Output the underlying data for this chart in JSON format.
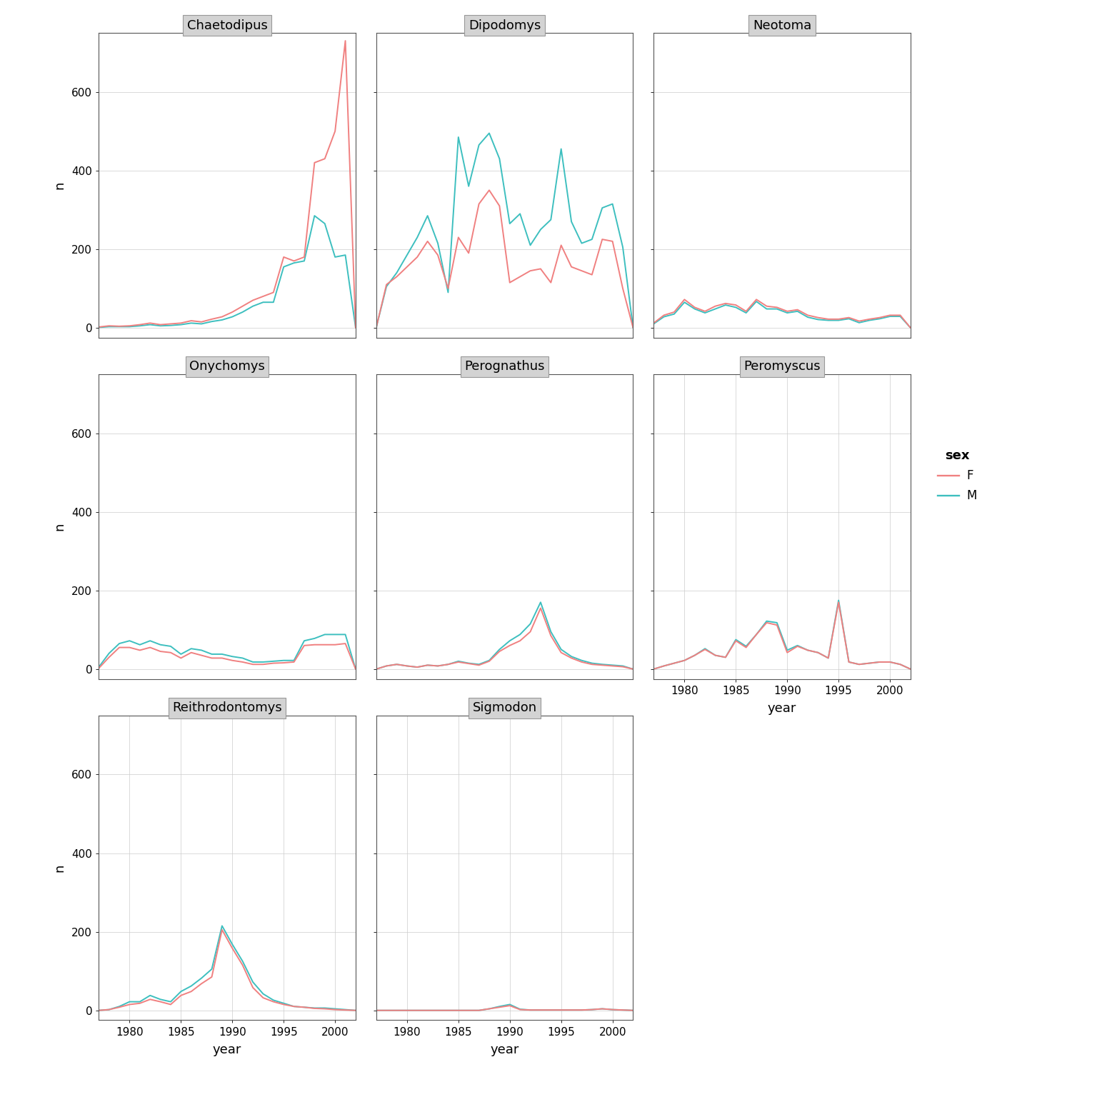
{
  "years": [
    1977,
    1978,
    1979,
    1980,
    1981,
    1982,
    1983,
    1984,
    1985,
    1986,
    1987,
    1988,
    1989,
    1990,
    1991,
    1992,
    1993,
    1994,
    1995,
    1996,
    1997,
    1998,
    1999,
    2000,
    2001,
    2002
  ],
  "genera": [
    "Chaetodipus",
    "Dipodomys",
    "Neotoma",
    "Onychomys",
    "Perognathus",
    "Peromyscus",
    "Reithrodontomys",
    "Sigmodon"
  ],
  "color_F": "#F08080",
  "color_M": "#3DBFBF",
  "line_width": 1.4,
  "background_color": "#FFFFFF",
  "panel_bg": "#FFFFFF",
  "grid_color": "#CCCCCC",
  "strip_bg": "#D3D3D3",
  "strip_border": "#999999",
  "ylabel": "n",
  "xlabel": "year",
  "legend_title": "sex",
  "data": {
    "Chaetodipus": {
      "F": [
        2,
        5,
        4,
        5,
        8,
        12,
        8,
        10,
        12,
        18,
        15,
        22,
        28,
        40,
        55,
        70,
        80,
        90,
        180,
        170,
        180,
        420,
        430,
        500,
        730,
        0
      ],
      "M": [
        1,
        3,
        3,
        3,
        5,
        8,
        5,
        6,
        8,
        12,
        10,
        16,
        20,
        28,
        40,
        55,
        65,
        65,
        155,
        165,
        170,
        285,
        265,
        180,
        185,
        0
      ]
    },
    "Dipodomys": {
      "F": [
        0,
        110,
        130,
        155,
        180,
        220,
        185,
        100,
        230,
        190,
        315,
        350,
        310,
        115,
        130,
        145,
        150,
        115,
        210,
        155,
        145,
        135,
        225,
        220,
        100,
        0
      ],
      "M": [
        0,
        105,
        140,
        185,
        230,
        285,
        215,
        90,
        485,
        360,
        465,
        495,
        430,
        265,
        290,
        210,
        250,
        275,
        455,
        270,
        215,
        225,
        305,
        315,
        205,
        0
      ]
    },
    "Neotoma": {
      "F": [
        12,
        32,
        40,
        72,
        52,
        42,
        55,
        62,
        58,
        42,
        72,
        55,
        52,
        42,
        46,
        32,
        26,
        22,
        22,
        26,
        17,
        22,
        26,
        32,
        32,
        0
      ],
      "M": [
        10,
        28,
        35,
        65,
        48,
        38,
        48,
        58,
        52,
        38,
        67,
        48,
        48,
        38,
        42,
        27,
        21,
        19,
        19,
        23,
        13,
        19,
        23,
        29,
        29,
        0
      ]
    },
    "Onychomys": {
      "F": [
        2,
        30,
        55,
        55,
        48,
        55,
        45,
        42,
        28,
        42,
        35,
        28,
        28,
        22,
        18,
        12,
        12,
        15,
        16,
        18,
        60,
        62,
        62,
        62,
        65,
        0
      ],
      "M": [
        5,
        40,
        65,
        72,
        62,
        72,
        62,
        58,
        38,
        52,
        48,
        38,
        38,
        32,
        28,
        18,
        18,
        20,
        22,
        22,
        72,
        78,
        88,
        88,
        88,
        0
      ]
    },
    "Perognathus": {
      "F": [
        0,
        8,
        12,
        8,
        5,
        10,
        8,
        12,
        18,
        14,
        10,
        20,
        45,
        60,
        72,
        95,
        155,
        85,
        42,
        28,
        18,
        12,
        10,
        8,
        6,
        0
      ],
      "M": [
        0,
        8,
        12,
        8,
        5,
        10,
        8,
        12,
        20,
        15,
        12,
        22,
        50,
        72,
        88,
        115,
        170,
        95,
        50,
        32,
        22,
        15,
        12,
        10,
        8,
        0
      ]
    },
    "Peromyscus": {
      "F": [
        0,
        8,
        15,
        22,
        35,
        50,
        35,
        30,
        72,
        55,
        88,
        118,
        112,
        42,
        58,
        48,
        42,
        28,
        170,
        18,
        12,
        15,
        18,
        18,
        12,
        0
      ],
      "M": [
        0,
        8,
        15,
        22,
        35,
        52,
        35,
        30,
        75,
        58,
        88,
        122,
        118,
        48,
        60,
        48,
        42,
        28,
        175,
        18,
        12,
        15,
        18,
        18,
        12,
        0
      ]
    },
    "Reithrodontomys": {
      "F": [
        0,
        2,
        8,
        15,
        18,
        28,
        22,
        15,
        38,
        48,
        68,
        85,
        205,
        158,
        115,
        58,
        32,
        22,
        15,
        10,
        8,
        5,
        4,
        2,
        1,
        0
      ],
      "M": [
        0,
        2,
        10,
        22,
        22,
        38,
        28,
        22,
        48,
        62,
        82,
        105,
        215,
        168,
        125,
        72,
        42,
        26,
        18,
        10,
        8,
        6,
        6,
        4,
        2,
        0
      ]
    },
    "Sigmodon": {
      "F": [
        0,
        0,
        0,
        0,
        0,
        0,
        0,
        0,
        0,
        0,
        0,
        4,
        8,
        12,
        2,
        1,
        1,
        1,
        1,
        1,
        1,
        2,
        4,
        2,
        1,
        0
      ],
      "M": [
        0,
        0,
        0,
        0,
        0,
        0,
        0,
        0,
        0,
        0,
        0,
        4,
        10,
        15,
        3,
        1,
        1,
        1,
        1,
        1,
        1,
        2,
        4,
        2,
        1,
        0
      ]
    }
  },
  "yticks": [
    0,
    200,
    400,
    600
  ],
  "xticks": [
    1980,
    1985,
    1990,
    1995,
    2000
  ],
  "xmin": 1977,
  "xmax": 2002,
  "ymin": -25,
  "ymax": 750
}
